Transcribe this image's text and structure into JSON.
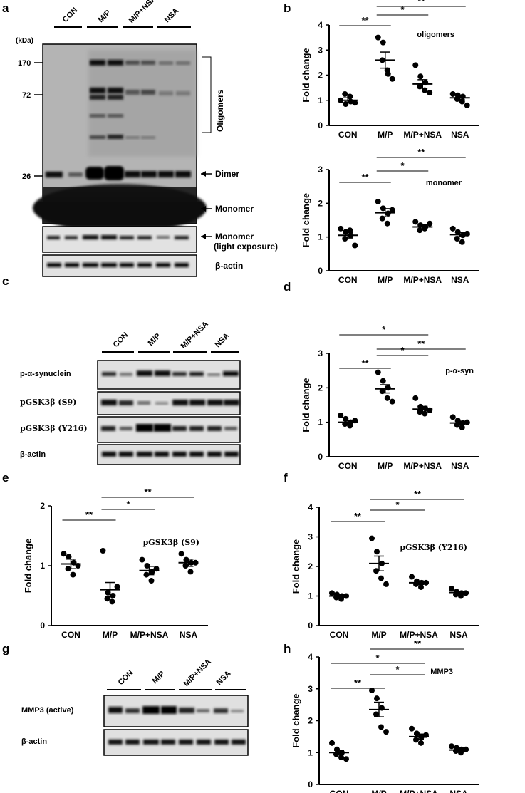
{
  "panel_letters": [
    "a",
    "b",
    "c",
    "d",
    "e",
    "f",
    "g",
    "h"
  ],
  "blot_a": {
    "lanes": [
      "CON",
      "M/P",
      "M/P+NSA",
      "NSA"
    ],
    "kda_label": "(kDa)",
    "markers": [
      "170",
      "72",
      "26"
    ],
    "annotations": [
      "Oligomers",
      "Dimer",
      "Monomer",
      "Monomer",
      "(light exposure)",
      "β-actin"
    ]
  },
  "blot_c": {
    "lanes": [
      "CON",
      "M/P",
      "M/P+NSA",
      "NSA"
    ],
    "rows": [
      "p-α-synuclein",
      "pGSK3β (S9)",
      "pGSK3β (Y216)",
      "β-actin"
    ]
  },
  "blot_g": {
    "lanes": [
      "CON",
      "M/P",
      "M/P+NSA",
      "NSA"
    ],
    "rows": [
      "MMP3 (active)",
      "β-actin"
    ]
  },
  "chart_data": [
    {
      "panel": "b-top",
      "type": "scatter",
      "categories": [
        "CON",
        "M/P",
        "M/P+NSA",
        "NSA"
      ],
      "ylabel": "Fold change",
      "ylim": [
        0,
        4
      ],
      "yticks": [
        "0",
        "1",
        "2",
        "3",
        "4"
      ],
      "annotation": "oligomers",
      "points": [
        [
          1.0,
          0.85,
          0.95,
          1.25,
          1.15,
          0.9
        ],
        [
          3.5,
          3.3,
          2.05,
          2.6,
          2.2,
          1.85
        ],
        [
          2.4,
          1.95,
          1.7,
          1.55,
          1.4,
          1.3
        ],
        [
          1.25,
          1.2,
          1.15,
          1.05,
          0.95,
          0.8
        ]
      ],
      "mean": [
        1.0,
        2.6,
        1.65,
        1.1
      ],
      "sem": [
        0.1,
        0.32,
        0.17,
        0.08
      ],
      "significance": [
        {
          "from": 0,
          "to": 1,
          "label": "**"
        },
        {
          "from": 1,
          "to": 2,
          "label": "*"
        },
        {
          "from": 1,
          "to": 3,
          "label": "**"
        }
      ]
    },
    {
      "panel": "b-bottom",
      "type": "scatter",
      "categories": [
        "CON",
        "M/P",
        "M/P+NSA",
        "NSA"
      ],
      "ylabel": "Fold change",
      "ylim": [
        0,
        3
      ],
      "yticks": [
        "0",
        "1",
        "2",
        "3"
      ],
      "annotation": "monomer",
      "points": [
        [
          1.25,
          1.15,
          1.05,
          0.95,
          1.2,
          0.75
        ],
        [
          2.05,
          1.85,
          1.7,
          1.55,
          1.4,
          1.8
        ],
        [
          1.45,
          1.35,
          1.3,
          1.2,
          1.25,
          1.4
        ],
        [
          1.25,
          1.15,
          1.05,
          0.95,
          0.85,
          1.1
        ]
      ],
      "mean": [
        1.05,
        1.72,
        1.3,
        1.07
      ],
      "sem": [
        0.08,
        0.12,
        0.06,
        0.06
      ],
      "significance": [
        {
          "from": 0,
          "to": 1,
          "label": "**"
        },
        {
          "from": 1,
          "to": 2,
          "label": "*"
        },
        {
          "from": 1,
          "to": 3,
          "label": "**"
        }
      ]
    },
    {
      "panel": "d",
      "type": "scatter",
      "categories": [
        "CON",
        "M/P",
        "M/P+NSA",
        "NSA"
      ],
      "ylabel": "Fold change",
      "ylim": [
        0,
        3
      ],
      "yticks": [
        "0",
        "1",
        "2",
        "3"
      ],
      "annotation": "p-α-syn",
      "points": [
        [
          1.2,
          1.1,
          1.0,
          0.95,
          0.9,
          1.05
        ],
        [
          2.45,
          2.2,
          2.0,
          1.9,
          1.7,
          1.6
        ],
        [
          1.7,
          1.45,
          1.4,
          1.3,
          1.25,
          1.35
        ],
        [
          1.15,
          1.05,
          0.98,
          0.92,
          0.85,
          1.0
        ]
      ],
      "mean": [
        1.0,
        1.97,
        1.38,
        0.98
      ],
      "sem": [
        0.05,
        0.12,
        0.08,
        0.05
      ],
      "significance": [
        {
          "from": 0,
          "to": 1,
          "label": "**"
        },
        {
          "from": 1,
          "to": 2,
          "label": "*"
        },
        {
          "from": 0,
          "to": 2,
          "label": "*"
        },
        {
          "from": 1,
          "to": 3,
          "label": "**"
        }
      ]
    },
    {
      "panel": "e",
      "type": "scatter",
      "categories": [
        "CON",
        "M/P",
        "M/P+NSA",
        "NSA"
      ],
      "ylabel": "Fold change",
      "ylim": [
        0,
        2
      ],
      "yticks": [
        "0",
        "1",
        "2"
      ],
      "annotation": "pGSK3β (S9)",
      "annotation_serif": true,
      "points": [
        [
          1.2,
          1.15,
          1.05,
          0.95,
          0.85,
          1.0
        ],
        [
          1.25,
          0.55,
          0.5,
          0.45,
          0.4,
          0.65
        ],
        [
          1.1,
          1.0,
          0.9,
          0.85,
          0.75,
          0.95
        ],
        [
          1.2,
          1.1,
          1.05,
          1.0,
          0.9,
          1.05
        ]
      ],
      "mean": [
        1.03,
        0.6,
        0.92,
        1.05
      ],
      "sem": [
        0.08,
        0.12,
        0.07,
        0.06
      ],
      "significance": [
        {
          "from": 0,
          "to": 1,
          "label": "**"
        },
        {
          "from": 1,
          "to": 2,
          "label": "*"
        },
        {
          "from": 1,
          "to": 3,
          "label": "**"
        }
      ]
    },
    {
      "panel": "f",
      "type": "scatter",
      "categories": [
        "CON",
        "M/P",
        "M/P+NSA",
        "NSA"
      ],
      "ylabel": "Fold change",
      "ylim": [
        0,
        4
      ],
      "yticks": [
        "0",
        "1",
        "2",
        "3",
        "4"
      ],
      "annotation": "pGSK3β (Y216)",
      "annotation_serif": true,
      "points": [
        [
          1.1,
          1.05,
          1.0,
          0.95,
          0.9,
          1.0
        ],
        [
          2.95,
          2.5,
          2.1,
          1.85,
          1.6,
          1.4
        ],
        [
          1.65,
          1.5,
          1.45,
          1.4,
          1.3,
          1.45
        ],
        [
          1.25,
          1.15,
          1.1,
          1.05,
          1.0,
          1.1
        ]
      ],
      "mean": [
        1.0,
        2.1,
        1.45,
        1.12
      ],
      "sem": [
        0.04,
        0.25,
        0.06,
        0.04
      ],
      "significance": [
        {
          "from": 0,
          "to": 1,
          "label": "**"
        },
        {
          "from": 1,
          "to": 2,
          "label": "*"
        },
        {
          "from": 1,
          "to": 3,
          "label": "**"
        }
      ]
    },
    {
      "panel": "h",
      "type": "scatter",
      "categories": [
        "CON",
        "M/P",
        "M/P+NSA",
        "NSA"
      ],
      "ylabel": "Fold change",
      "ylim": [
        0,
        4
      ],
      "yticks": [
        "0",
        "1",
        "2",
        "3",
        "4"
      ],
      "annotation": "MMP3",
      "points": [
        [
          1.3,
          1.1,
          1.0,
          0.95,
          0.85,
          0.8
        ],
        [
          2.95,
          2.7,
          2.4,
          2.2,
          1.8,
          1.65
        ],
        [
          1.75,
          1.6,
          1.5,
          1.4,
          1.3,
          1.55
        ],
        [
          1.2,
          1.15,
          1.1,
          1.05,
          1.0,
          1.1
        ]
      ],
      "mean": [
        1.0,
        2.35,
        1.5,
        1.08
      ],
      "sem": [
        0.07,
        0.23,
        0.08,
        0.04
      ],
      "significance": [
        {
          "from": 0,
          "to": 1,
          "label": "**"
        },
        {
          "from": 1,
          "to": 2,
          "label": "*"
        },
        {
          "from": 0,
          "to": 2,
          "label": "*"
        },
        {
          "from": 1,
          "to": 3,
          "label": "**"
        }
      ]
    }
  ]
}
